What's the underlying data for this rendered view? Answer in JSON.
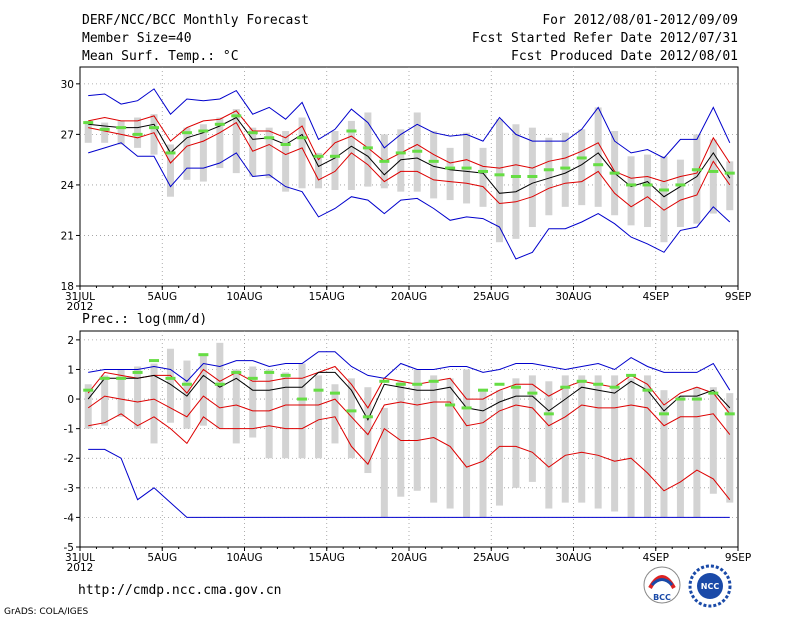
{
  "header": {
    "title": "DERF/NCC/BCC Monthly Forecast",
    "member_size": "Member Size=40",
    "variable": "Mean Surf. Temp.: °C",
    "period": "For 2012/08/01-2012/09/09",
    "started": "Fcst Started Refer Date 2012/07/31",
    "produced": "Fcst Produced Date 2012/08/01"
  },
  "footer": {
    "url": "http://cmdp.ncc.cma.gov.cn",
    "credit": "GrADS: COLA/IGES",
    "logo_left_text": "BCC",
    "logo_right_text": "NCC"
  },
  "colors": {
    "box": "#d3d3d3",
    "median": "#66dd44",
    "mean": "#000000",
    "quartile": "#dd0000",
    "extreme": "#0000cc"
  },
  "chart_data": [
    {
      "type": "line",
      "title": "Mean Surf. Temp.: °C",
      "ylim": [
        18,
        31
      ],
      "yticks": [
        18,
        21,
        24,
        27,
        30
      ],
      "xticks": [
        {
          "day": 0,
          "label": "31JUL",
          "sub": "2012"
        },
        {
          "day": 5,
          "label": "5AUG"
        },
        {
          "day": 10,
          "label": "10AUG"
        },
        {
          "day": 15,
          "label": "15AUG"
        },
        {
          "day": 20,
          "label": "20AUG"
        },
        {
          "day": 25,
          "label": "25AUG"
        },
        {
          "day": 30,
          "label": "30AUG"
        },
        {
          "day": 35,
          "label": "4SEP"
        },
        {
          "day": 40,
          "label": "9SEP"
        }
      ],
      "box_low": [
        26.5,
        26.5,
        26.4,
        26.2,
        25.8,
        23.3,
        24.3,
        24.2,
        25.0,
        24.7,
        24.5,
        24.4,
        23.6,
        23.8,
        23.8,
        23.7,
        23.7,
        23.9,
        23.8,
        23.6,
        23.6,
        23.2,
        23.1,
        22.9,
        22.7,
        20.6,
        20.8,
        21.5,
        22.2,
        22.7,
        22.8,
        22.7,
        22.2,
        21.6,
        21.5,
        20.6,
        21.5,
        21.7,
        22.3,
        22.5
      ],
      "box_high": [
        27.8,
        27.7,
        27.8,
        28.0,
        28.2,
        26.4,
        27.4,
        27.6,
        28.0,
        28.5,
        27.4,
        27.4,
        27.2,
        28.0,
        25.9,
        27.2,
        27.8,
        28.3,
        27.0,
        27.3,
        28.3,
        27.2,
        26.2,
        27.1,
        26.2,
        27.9,
        27.6,
        27.4,
        26.8,
        27.1,
        27.3,
        28.6,
        27.2,
        25.7,
        25.8,
        25.7,
        25.5,
        27.0,
        26.7,
        25.4
      ],
      "series": [
        {
          "name": "max",
          "values": [
            29.3,
            29.4,
            28.8,
            29.0,
            29.7,
            28.2,
            29.1,
            29.0,
            29.1,
            29.6,
            28.2,
            28.6,
            27.9,
            28.9,
            26.7,
            27.3,
            28.5,
            27.7,
            26.2,
            27.0,
            27.6,
            27.1,
            26.9,
            27.0,
            26.6,
            28.0,
            27.0,
            26.6,
            26.6,
            26.6,
            27.3,
            28.6,
            26.6,
            25.9,
            26.1,
            25.6,
            26.7,
            26.7,
            28.6,
            26.5
          ]
        },
        {
          "name": "upper_quartile",
          "values": [
            27.8,
            28.0,
            27.8,
            27.8,
            28.1,
            26.6,
            27.4,
            27.8,
            27.9,
            28.4,
            27.2,
            27.2,
            26.8,
            27.5,
            25.5,
            26.5,
            26.9,
            26.2,
            25.4,
            25.9,
            26.4,
            25.8,
            25.3,
            25.5,
            25.1,
            25.0,
            25.2,
            25.0,
            25.4,
            25.6,
            26.0,
            26.5,
            24.8,
            24.4,
            24.5,
            24.2,
            24.5,
            24.7,
            26.8,
            25.3
          ]
        },
        {
          "name": "mean",
          "values": [
            27.6,
            27.5,
            27.4,
            27.4,
            27.6,
            25.9,
            26.8,
            27.1,
            27.5,
            28.0,
            26.7,
            26.8,
            26.4,
            27.0,
            25.1,
            25.6,
            26.3,
            25.7,
            24.6,
            25.5,
            25.6,
            25.1,
            24.9,
            24.8,
            24.7,
            23.5,
            23.6,
            24.1,
            24.4,
            24.7,
            25.2,
            25.9,
            24.7,
            23.9,
            24.2,
            23.3,
            23.9,
            24.5,
            25.9,
            24.4
          ]
        },
        {
          "name": "lower_quartile",
          "values": [
            27.4,
            27.2,
            27.0,
            26.8,
            27.1,
            25.3,
            26.3,
            26.6,
            27.1,
            27.7,
            26.0,
            26.4,
            25.8,
            26.2,
            24.3,
            24.8,
            25.9,
            25.2,
            24.2,
            24.8,
            24.8,
            24.3,
            24.2,
            24.1,
            23.9,
            22.9,
            23.0,
            23.3,
            23.8,
            24.1,
            24.2,
            24.8,
            23.5,
            22.7,
            23.3,
            22.5,
            23.1,
            23.4,
            25.4,
            24.0
          ]
        },
        {
          "name": "min",
          "values": [
            25.9,
            26.2,
            26.5,
            25.7,
            25.7,
            23.9,
            25.0,
            25.0,
            25.3,
            25.9,
            24.5,
            24.6,
            23.9,
            23.6,
            22.1,
            22.6,
            23.3,
            23.1,
            22.3,
            23.1,
            23.2,
            22.6,
            21.9,
            22.1,
            22.0,
            21.5,
            19.6,
            20.0,
            21.4,
            21.4,
            21.8,
            22.3,
            21.7,
            20.9,
            20.5,
            20.0,
            21.3,
            21.5,
            22.7,
            21.8
          ]
        },
        {
          "name": "median",
          "values": [
            27.7,
            27.3,
            27.4,
            27.0,
            27.4,
            25.9,
            27.1,
            27.2,
            27.6,
            28.1,
            27.1,
            26.8,
            26.4,
            26.8,
            25.7,
            25.7,
            27.2,
            26.2,
            25.4,
            25.9,
            26.0,
            25.4,
            25.0,
            25.0,
            24.8,
            24.6,
            24.5,
            24.5,
            24.9,
            25.0,
            25.6,
            25.2,
            24.7,
            24.0,
            24.0,
            23.7,
            24.0,
            24.9,
            24.8,
            24.7
          ]
        }
      ]
    },
    {
      "type": "line",
      "title": "Prec.: log(mm/d)",
      "ylim": [
        -5,
        2.3
      ],
      "yticks": [
        -5,
        -4,
        -3,
        -2,
        -1,
        0,
        1,
        2
      ],
      "xticks": [
        {
          "day": 0,
          "label": "31JUL",
          "sub": "2012"
        },
        {
          "day": 5,
          "label": "5AUG"
        },
        {
          "day": 10,
          "label": "10AUG"
        },
        {
          "day": 15,
          "label": "15AUG"
        },
        {
          "day": 20,
          "label": "20AUG"
        },
        {
          "day": 25,
          "label": "25AUG"
        },
        {
          "day": 30,
          "label": "30AUG"
        },
        {
          "day": 35,
          "label": "4SEP"
        },
        {
          "day": 40,
          "label": "9SEP"
        }
      ],
      "box_low": [
        -1.0,
        -0.9,
        -0.6,
        -1.0,
        -1.5,
        -0.8,
        -1.0,
        -0.9,
        -1.0,
        -1.5,
        -1.3,
        -2.0,
        -2.0,
        -2.0,
        -2.0,
        -1.5,
        -2.0,
        -2.5,
        -4.0,
        -3.3,
        -3.1,
        -3.5,
        -3.7,
        -4.0,
        -4.0,
        -3.6,
        -3.0,
        -2.8,
        -3.7,
        -3.5,
        -3.5,
        -3.7,
        -3.8,
        -4.0,
        -4.0,
        -4.0,
        -4.0,
        -4.0,
        -3.2,
        -3.5
      ],
      "box_high": [
        0.5,
        0.8,
        1.0,
        1.1,
        1.2,
        1.7,
        1.3,
        1.5,
        1.9,
        1.0,
        1.1,
        1.0,
        0.9,
        1.2,
        0.8,
        0.5,
        0.7,
        0.4,
        -0.3,
        0.6,
        1.0,
        0.8,
        0.7,
        1.0,
        0.3,
        0.3,
        0.7,
        0.8,
        0.6,
        0.8,
        0.8,
        0.8,
        0.8,
        0.7,
        0.8,
        0.3,
        0.1,
        0.4,
        0.4,
        0.2
      ],
      "series": [
        {
          "name": "max",
          "values": [
            0.9,
            1.0,
            1.0,
            1.0,
            1.1,
            1.0,
            0.6,
            1.2,
            1.1,
            1.3,
            1.3,
            1.1,
            1.2,
            1.2,
            1.6,
            1.6,
            1.1,
            0.8,
            0.7,
            1.2,
            1.0,
            1.0,
            1.1,
            1.1,
            0.9,
            1.0,
            1.2,
            1.2,
            1.1,
            1.0,
            1.1,
            1.2,
            1.0,
            1.4,
            1.1,
            0.9,
            0.9,
            0.9,
            1.2,
            0.3
          ]
        },
        {
          "name": "upper_quartile",
          "values": [
            0.2,
            0.9,
            0.8,
            0.7,
            0.8,
            0.8,
            0.2,
            1.0,
            0.6,
            0.9,
            0.6,
            0.6,
            0.7,
            0.7,
            0.9,
            1.1,
            0.5,
            -0.3,
            0.7,
            0.6,
            0.5,
            0.6,
            0.7,
            0.0,
            0.0,
            0.3,
            0.5,
            0.5,
            0.1,
            0.4,
            0.6,
            0.5,
            0.4,
            0.8,
            0.5,
            -0.2,
            0.2,
            0.4,
            0.2,
            -0.5
          ]
        },
        {
          "name": "mean",
          "values": [
            0.0,
            0.7,
            0.7,
            0.7,
            0.8,
            0.5,
            0.1,
            0.8,
            0.4,
            0.7,
            0.3,
            0.3,
            0.4,
            0.4,
            0.9,
            0.9,
            0.3,
            -0.7,
            0.5,
            0.4,
            0.3,
            0.3,
            0.4,
            -0.3,
            -0.4,
            -0.1,
            0.1,
            0.1,
            -0.4,
            0.0,
            0.4,
            0.3,
            0.2,
            0.6,
            0.3,
            -0.4,
            0.1,
            0.1,
            0.3,
            -0.3
          ]
        },
        {
          "name": "lower_quartile",
          "values": [
            -0.3,
            0.1,
            0.0,
            -0.1,
            0.0,
            -0.3,
            -0.6,
            0.1,
            -0.3,
            -0.2,
            -0.4,
            -0.4,
            -0.2,
            -0.2,
            -0.2,
            0.0,
            -0.6,
            -1.2,
            -0.2,
            -0.1,
            -0.2,
            -0.1,
            -0.1,
            -0.9,
            -0.8,
            -0.4,
            -0.2,
            -0.3,
            -0.9,
            -0.6,
            -0.2,
            -0.3,
            -0.3,
            -0.2,
            -0.3,
            -0.9,
            -0.6,
            -0.6,
            -0.5,
            -1.2
          ]
        },
        {
          "name": "min",
          "values": [
            -1.7,
            -1.7,
            -2.0,
            -3.4,
            -3.0,
            -3.5,
            -4.0,
            -4.0,
            -4.0,
            -4.0,
            -4.0,
            -4.0,
            -4.0,
            -4.0,
            -4.0,
            -4.0,
            -4.0,
            -4.0,
            -4.0,
            -4.0,
            -4.0,
            -4.0,
            -4.0,
            -4.0,
            -4.0,
            -4.0,
            -4.0,
            -4.0,
            -4.0,
            -4.0,
            -4.0,
            -4.0,
            -4.0,
            -4.0,
            -4.0,
            -4.0,
            -4.0,
            -4.0,
            -4.0,
            -4.0
          ]
        },
        {
          "name": "min_quartile",
          "values": [
            -0.9,
            -0.8,
            -0.5,
            -0.9,
            -0.6,
            -1.0,
            -1.5,
            -0.6,
            -1.0,
            -1.0,
            -1.0,
            -0.9,
            -1.0,
            -1.0,
            -0.7,
            -0.6,
            -1.6,
            -2.2,
            -1.0,
            -1.4,
            -1.4,
            -1.3,
            -1.6,
            -2.3,
            -2.1,
            -1.6,
            -1.6,
            -1.8,
            -2.3,
            -1.9,
            -1.8,
            -1.9,
            -2.1,
            -2.0,
            -2.5,
            -3.1,
            -2.8,
            -2.4,
            -2.7,
            -3.4
          ]
        },
        {
          "name": "median",
          "values": [
            0.3,
            0.7,
            0.7,
            0.9,
            1.3,
            0.7,
            0.5,
            1.5,
            0.5,
            0.9,
            0.7,
            0.9,
            0.8,
            0.0,
            0.3,
            0.2,
            -0.4,
            -0.6,
            0.6,
            0.5,
            0.5,
            0.6,
            -0.2,
            -0.3,
            0.3,
            0.5,
            0.4,
            0.2,
            -0.5,
            0.4,
            0.6,
            0.5,
            0.4,
            0.8,
            0.3,
            -0.5,
            0.0,
            0.0,
            0.2,
            -0.5
          ]
        }
      ]
    }
  ]
}
